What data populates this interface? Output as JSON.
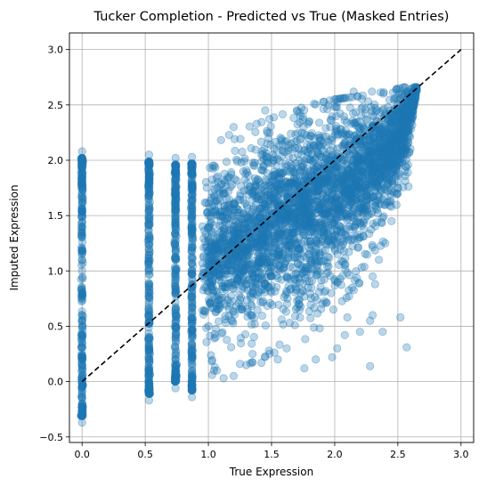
{
  "chart_data": {
    "type": "scatter",
    "title": "Tucker Completion - Predicted vs True (Masked Entries)",
    "xlabel": "True Expression",
    "ylabel": "Imputed Expression",
    "xlim": [
      -0.1,
      3.1
    ],
    "ylim": [
      -0.55,
      3.15
    ],
    "xticks": [
      0.0,
      0.5,
      1.0,
      1.5,
      2.0,
      2.5,
      3.0
    ],
    "xtick_labels": [
      "0.0",
      "0.5",
      "1.0",
      "1.5",
      "2.0",
      "2.5",
      "3.0"
    ],
    "yticks": [
      -0.5,
      0.0,
      0.5,
      1.0,
      1.5,
      2.0,
      2.5,
      3.0
    ],
    "ytick_labels": [
      "−0.5",
      "0.0",
      "0.5",
      "1.0",
      "1.5",
      "2.0",
      "2.5",
      "3.0"
    ],
    "grid": true,
    "point_color": "#1f77b4",
    "point_alpha": 0.3,
    "reference_line": {
      "style": "dashed",
      "color": "#000000",
      "from": [
        0.0,
        0.0
      ],
      "to": [
        3.0,
        3.0
      ]
    },
    "series": [
      {
        "kind": "vertical-strip",
        "x": 0.0,
        "y_range": [
          -0.37,
          2.08
        ],
        "points": [
          [
            0.0,
            2.08
          ],
          [
            0.0,
            2.02
          ],
          [
            0.0,
            1.93
          ],
          [
            0.0,
            1.82
          ],
          [
            0.0,
            1.7
          ],
          [
            0.0,
            1.55
          ],
          [
            0.0,
            1.4
          ],
          [
            0.0,
            1.2
          ],
          [
            0.0,
            1.0
          ],
          [
            0.0,
            0.8
          ],
          [
            0.0,
            0.6
          ],
          [
            0.0,
            0.4
          ],
          [
            0.0,
            0.2
          ],
          [
            0.0,
            0.0
          ],
          [
            0.0,
            -0.12
          ],
          [
            0.0,
            -0.2
          ],
          [
            0.0,
            -0.26
          ],
          [
            0.0,
            -0.3
          ],
          [
            0.0,
            -0.37
          ]
        ]
      },
      {
        "kind": "vertical-strip",
        "x": 0.53,
        "y_range": [
          -0.17,
          2.05
        ],
        "points": [
          [
            0.53,
            2.05
          ],
          [
            0.53,
            1.95
          ],
          [
            0.53,
            1.8
          ],
          [
            0.53,
            1.6
          ],
          [
            0.53,
            1.3
          ],
          [
            0.53,
            1.0
          ],
          [
            0.53,
            0.7
          ],
          [
            0.53,
            0.4
          ],
          [
            0.53,
            0.1
          ],
          [
            0.53,
            -0.05
          ],
          [
            0.53,
            -0.17
          ]
        ]
      },
      {
        "kind": "vertical-strip",
        "x": 0.74,
        "y_range": [
          -0.06,
          2.02
        ],
        "points": [
          [
            0.74,
            2.02
          ],
          [
            0.74,
            1.9
          ],
          [
            0.74,
            1.7
          ],
          [
            0.74,
            1.4
          ],
          [
            0.74,
            1.1
          ],
          [
            0.74,
            0.8
          ],
          [
            0.74,
            0.5
          ],
          [
            0.74,
            0.2
          ],
          [
            0.74,
            0.0
          ],
          [
            0.74,
            -0.06
          ]
        ]
      },
      {
        "kind": "vertical-strip",
        "x": 0.87,
        "y_range": [
          -0.14,
          2.03
        ],
        "points": [
          [
            0.87,
            2.03
          ],
          [
            0.87,
            1.9
          ],
          [
            0.87,
            1.6
          ],
          [
            0.87,
            1.3
          ],
          [
            0.87,
            1.0
          ],
          [
            0.87,
            0.7
          ],
          [
            0.87,
            0.4
          ],
          [
            0.87,
            0.1
          ],
          [
            0.87,
            -0.14
          ]
        ]
      },
      {
        "kind": "dense-cloud",
        "x_range": [
          0.95,
          2.65
        ],
        "lower_edge": [
          [
            0.95,
            0.1
          ],
          [
            1.2,
            0.1
          ],
          [
            1.5,
            0.25
          ],
          [
            1.8,
            0.4
          ],
          [
            2.0,
            0.6
          ],
          [
            2.2,
            0.9
          ],
          [
            2.4,
            1.3
          ],
          [
            2.55,
            1.8
          ],
          [
            2.65,
            2.5
          ]
        ],
        "upper_edge": [
          [
            0.95,
            2.1
          ],
          [
            1.2,
            2.25
          ],
          [
            1.5,
            2.38
          ],
          [
            1.8,
            2.5
          ],
          [
            2.0,
            2.55
          ],
          [
            2.2,
            2.58
          ],
          [
            2.4,
            2.62
          ],
          [
            2.55,
            2.66
          ],
          [
            2.65,
            2.66
          ]
        ]
      },
      {
        "kind": "outliers",
        "points": [
          [
            1.2,
            2.3
          ],
          [
            1.45,
            2.45
          ],
          [
            1.7,
            2.45
          ],
          [
            1.8,
            2.35
          ],
          [
            2.0,
            2.48
          ],
          [
            2.15,
            2.62
          ],
          [
            2.45,
            2.12
          ],
          [
            2.48,
            1.95
          ],
          [
            2.5,
            1.7
          ],
          [
            2.45,
            1.45
          ],
          [
            2.4,
            1.25
          ],
          [
            2.35,
            1.1
          ],
          [
            2.32,
            0.88
          ],
          [
            2.3,
            0.6
          ],
          [
            2.28,
            0.55
          ],
          [
            2.2,
            0.45
          ],
          [
            2.1,
            0.58
          ],
          [
            2.08,
            0.42
          ],
          [
            2.02,
            0.3
          ],
          [
            1.98,
            0.22
          ],
          [
            1.85,
            0.2
          ],
          [
            1.76,
            0.12
          ],
          [
            1.62,
            0.3
          ],
          [
            1.55,
            0.2
          ],
          [
            1.48,
            0.28
          ],
          [
            1.42,
            0.17
          ],
          [
            1.35,
            0.25
          ],
          [
            1.25,
            0.16
          ],
          [
            1.2,
            0.05
          ],
          [
            1.12,
            0.03
          ],
          [
            1.03,
            0.06
          ],
          [
            2.57,
            0.31
          ],
          [
            2.28,
            0.14
          ],
          [
            2.38,
            0.45
          ],
          [
            2.52,
            0.58
          ],
          [
            2.3,
            0.95
          ]
        ]
      }
    ]
  }
}
